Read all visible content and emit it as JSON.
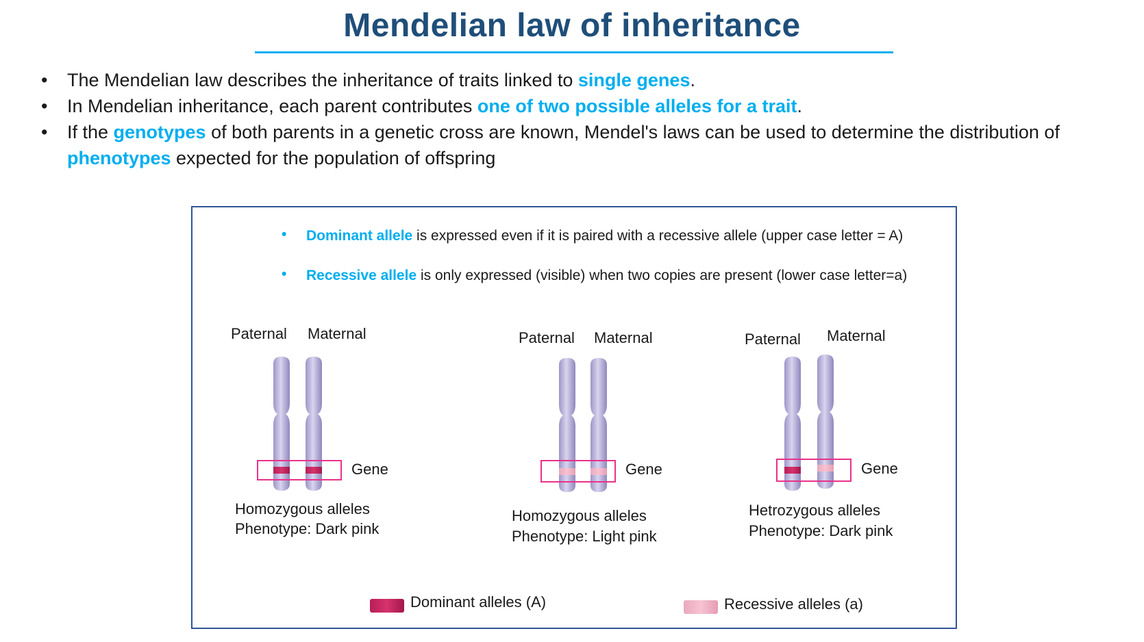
{
  "title": "Mendelian law of inheritance",
  "bullets": [
    {
      "pre": "The Mendelian law describes the inheritance of traits linked to ",
      "hl": "single genes",
      "post": "."
    },
    {
      "pre": "In Mendelian inheritance, each parent contributes ",
      "hl": "one of two possible alleles for a trait",
      "post": "."
    },
    {
      "pre": "If the ",
      "hl": "genotypes",
      "mid": " of both parents in a genetic cross are known, Mendel's laws can be used to determine the distribution of ",
      "hl2": "phenotypes",
      "post": " expected for the population of offspring"
    }
  ],
  "definitions": [
    {
      "term": "Dominant allele",
      "text": " is expressed even if it is paired with a recessive allele (upper case letter = A)"
    },
    {
      "term": "Recessive allele",
      "text": " is only expressed (visible) when two copies are present (lower case letter=a)"
    }
  ],
  "examples": [
    {
      "paternal": "Paternal",
      "maternal": "Maternal",
      "gene": "Gene",
      "line1": "Homozygous alleles",
      "line2": "Phenotype: Dark pink",
      "alleles": [
        "A",
        "A"
      ]
    },
    {
      "paternal": "Paternal",
      "maternal": "Maternal",
      "gene": "Gene",
      "line1": "Homozygous alleles",
      "line2": "Phenotype: Light pink",
      "alleles": [
        "a",
        "a"
      ]
    },
    {
      "paternal": "Paternal",
      "maternal": "Maternal",
      "gene": "Gene",
      "line1": "Hetrozygous alleles",
      "line2": "Phenotype: Dark pink",
      "alleles": [
        "A",
        "a"
      ]
    }
  ],
  "legend": {
    "dominant": "Dominant alleles (A)",
    "recessive": "Recessive alleles (a)"
  },
  "colors": {
    "title": "#1f4e79",
    "highlight": "#00aeef",
    "panel_border": "#2f5597",
    "gene_box": "#e8318a",
    "dominant": "#d6336c",
    "recessive": "#f6c3d2",
    "chromosome": "#b3acd6"
  }
}
